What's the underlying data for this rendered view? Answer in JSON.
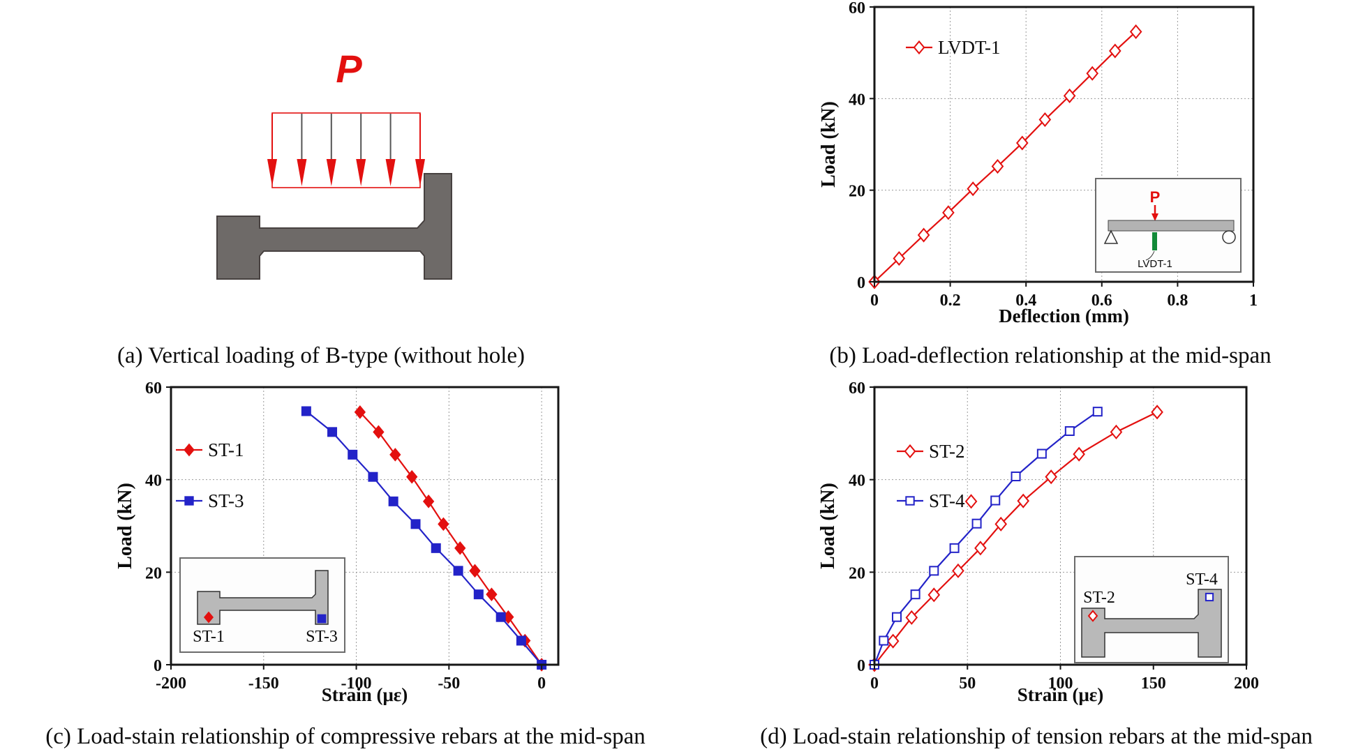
{
  "colors": {
    "red": "#e3100f",
    "blue": "#2323c8",
    "beam_dark": "#6e6a68",
    "beam_dark_stroke": "#474140",
    "beam_light": "#b9b9b9",
    "beam_light_stroke": "#333333",
    "grid": "#999999",
    "frame": "#161616",
    "green": "#128a38",
    "text": "#0c0c0c",
    "inset_bg": "#fdfdfd",
    "inset_border": "#6b6b6b"
  },
  "panels": {
    "a": {
      "caption": "(a) Vertical loading of B-type (without hole)",
      "load_label": "P"
    },
    "b": {
      "caption": "(b) Load-deflection relationship at the mid-span"
    },
    "c": {
      "caption": "(c) Load-stain relationship of compressive rebars at the mid-span"
    },
    "d": {
      "caption": "(d) Load-stain relationship of tension rebars at the mid-span"
    }
  },
  "chart_data": [
    {
      "id": "b",
      "type": "line",
      "xlabel": "Deflection (mm)",
      "ylabel": "Load (kN)",
      "xlim": [
        0,
        1
      ],
      "ylim": [
        0,
        60
      ],
      "xticks": [
        0,
        0.2,
        0.4,
        0.6,
        0.8,
        1
      ],
      "xtick_labels": [
        "0",
        "0.2",
        "0.4",
        "0.6",
        "0.8",
        "1"
      ],
      "yticks": [
        0,
        20,
        40,
        60
      ],
      "ytick_labels": [
        "0",
        "20",
        "40",
        "60"
      ],
      "grid": true,
      "legend_position": "upper-left-inside",
      "series": [
        {
          "name": "LVDT-1",
          "color_key": "red",
          "marker": "diamond-open",
          "points": [
            [
              0,
              0
            ],
            [
              0.065,
              5.1
            ],
            [
              0.13,
              10.2
            ],
            [
              0.195,
              15.1
            ],
            [
              0.26,
              20.3
            ],
            [
              0.325,
              25.2
            ],
            [
              0.39,
              30.3
            ],
            [
              0.45,
              35.4
            ],
            [
              0.515,
              40.6
            ],
            [
              0.575,
              45.5
            ],
            [
              0.635,
              50.4
            ],
            [
              0.69,
              54.6
            ]
          ]
        }
      ],
      "inset": {
        "kind": "beam-lvdt",
        "load_label": "P",
        "sensor_label": "LVDT-1"
      }
    },
    {
      "id": "c",
      "type": "line",
      "xlabel": "Strain (με)",
      "ylabel": "Load (kN)",
      "xlim": [
        -200,
        9
      ],
      "ylim": [
        0,
        60
      ],
      "xticks": [
        -200,
        -150,
        -100,
        -50,
        0
      ],
      "xtick_labels": [
        "-200",
        "-150",
        "-100",
        "-50",
        "0"
      ],
      "yticks": [
        0,
        20,
        40,
        60
      ],
      "ytick_labels": [
        "0",
        "20",
        "40",
        "60"
      ],
      "grid": true,
      "legend_position": "upper-left-inside",
      "series": [
        {
          "name": "ST-1",
          "color_key": "red",
          "marker": "diamond-filled",
          "points": [
            [
              0,
              0
            ],
            [
              -9,
              5.2
            ],
            [
              -18,
              10.3
            ],
            [
              -27,
              15.2
            ],
            [
              -36,
              20.3
            ],
            [
              -44,
              25.2
            ],
            [
              -53,
              30.4
            ],
            [
              -61,
              35.3
            ],
            [
              -70,
              40.6
            ],
            [
              -79,
              45.4
            ],
            [
              -88,
              50.3
            ],
            [
              -98,
              54.6
            ]
          ]
        },
        {
          "name": "ST-3",
          "color_key": "blue",
          "marker": "square-filled",
          "points": [
            [
              0,
              0
            ],
            [
              -11,
              5.2
            ],
            [
              -22,
              10.3
            ],
            [
              -34,
              15.2
            ],
            [
              -45,
              20.3
            ],
            [
              -57,
              25.2
            ],
            [
              -68,
              30.4
            ],
            [
              -80,
              35.3
            ],
            [
              -91,
              40.6
            ],
            [
              -102,
              45.4
            ],
            [
              -113,
              50.3
            ],
            [
              -127,
              54.8
            ]
          ]
        }
      ],
      "inset": {
        "kind": "beam-bottom-markers",
        "left_label": "ST-1",
        "right_label": "ST-3"
      }
    },
    {
      "id": "d",
      "type": "line",
      "xlabel": "Strain (με)",
      "ylabel": "Load (kN)",
      "xlim": [
        0,
        200
      ],
      "ylim": [
        0,
        60
      ],
      "xticks": [
        0,
        50,
        100,
        150,
        200
      ],
      "xtick_labels": [
        "0",
        "50",
        "100",
        "150",
        "200"
      ],
      "yticks": [
        0,
        20,
        40,
        60
      ],
      "ytick_labels": [
        "0",
        "20",
        "40",
        "60"
      ],
      "grid": true,
      "legend_position": "upper-left-inside",
      "series": [
        {
          "name": "ST-2",
          "color_key": "red",
          "marker": "diamond-open",
          "points": [
            [
              0,
              0
            ],
            [
              10,
              5.1
            ],
            [
              20,
              10.2
            ],
            [
              32,
              15.1
            ],
            [
              45,
              20.3
            ],
            [
              57,
              25.2
            ],
            [
              68,
              30.4
            ],
            [
              80,
              35.4
            ],
            [
              95,
              40.6
            ],
            [
              110,
              45.5
            ],
            [
              130,
              50.3
            ],
            [
              152,
              54.6
            ]
          ],
          "extra_points": [
            [
              52,
              35.3
            ]
          ]
        },
        {
          "name": "ST-4",
          "color_key": "blue",
          "marker": "square-open",
          "points": [
            [
              0,
              0
            ],
            [
              5,
              5.2
            ],
            [
              12,
              10.3
            ],
            [
              22,
              15.2
            ],
            [
              32,
              20.3
            ],
            [
              43,
              25.2
            ],
            [
              55,
              30.5
            ],
            [
              65,
              35.5
            ],
            [
              76,
              40.7
            ],
            [
              90,
              45.6
            ],
            [
              105,
              50.5
            ],
            [
              120,
              54.7
            ]
          ]
        }
      ],
      "inset": {
        "kind": "beam-top-markers",
        "left_label": "ST-2",
        "right_label": "ST-4"
      }
    }
  ]
}
